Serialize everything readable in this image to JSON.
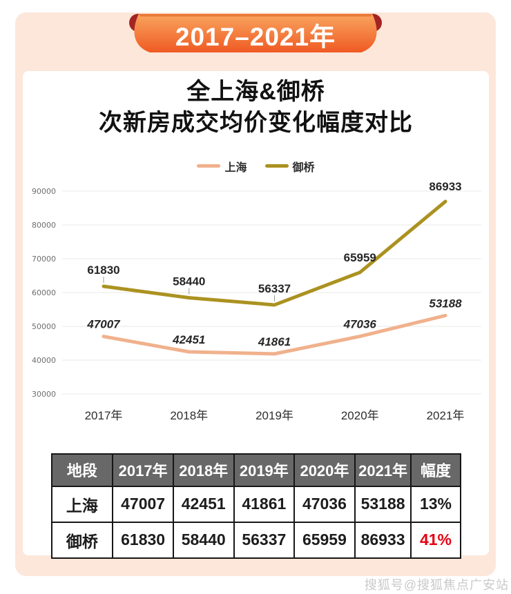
{
  "banner": {
    "label": "2017–2021年"
  },
  "title": {
    "line1": "全上海&御桥",
    "line2": "次新房成交均价变化幅度对比"
  },
  "chart_data": {
    "type": "line",
    "x": [
      "2017年",
      "2018年",
      "2019年",
      "2020年",
      "2021年"
    ],
    "series": [
      {
        "name": "上海",
        "color": "#f0b18c",
        "values": [
          47007,
          42451,
          41861,
          47036,
          53188
        ],
        "label_style": "italic",
        "leader_ticks": []
      },
      {
        "name": "御桥",
        "color": "#ab9220",
        "values": [
          61830,
          58440,
          56337,
          65959,
          86933
        ],
        "label_style": "bold",
        "leader_ticks": [
          0,
          1,
          2
        ]
      }
    ],
    "ylim": [
      30000,
      90000
    ],
    "ytick_step": 10000,
    "grid": true,
    "legend_position": "top",
    "xlabel": "",
    "ylabel": ""
  },
  "table": {
    "headers": [
      "地段",
      "2017年",
      "2018年",
      "2019年",
      "2020年",
      "2021年",
      "幅度"
    ],
    "rows": [
      {
        "cells": [
          "上海",
          "47007",
          "42451",
          "41861",
          "47036",
          "53188",
          "13%"
        ],
        "highlight_last": false
      },
      {
        "cells": [
          "御桥",
          "61830",
          "58440",
          "56337",
          "65959",
          "86933",
          "41%"
        ],
        "highlight_last": true
      }
    ],
    "highlight_color": "#e60012"
  },
  "watermark": "搜狐号@搜狐焦点广安站",
  "colors": {
    "panel_bg": "#fce7da",
    "ribbon_gradient_top": "#f9a55f",
    "ribbon_gradient_bottom": "#ef5a23",
    "ribbon_fold": "#a42423",
    "table_header_bg": "#686868",
    "highlight_red": "#e60012",
    "gridline": "#e8e8e6"
  }
}
